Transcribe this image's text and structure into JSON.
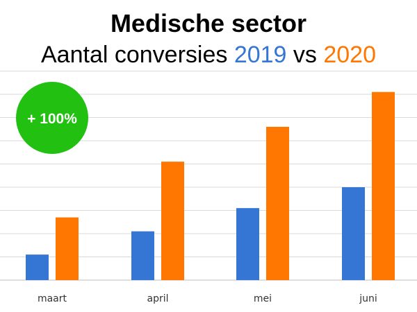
{
  "title": "Medische sector",
  "subtitle": {
    "prefix": "Aantal conversies ",
    "year_a": "2019",
    "separator": " vs ",
    "year_b": "2020"
  },
  "badge": {
    "text": "+ 100%",
    "color": "#22c111"
  },
  "chart_data": {
    "type": "bar",
    "title": "Medische sector",
    "subtitle": "Aantal conversies 2019 vs 2020",
    "categories": [
      "maart",
      "april",
      "mei",
      "juni"
    ],
    "series": [
      {
        "name": "2019",
        "color": "#3575d3",
        "values": [
          1.1,
          2.1,
          3.1,
          4.0
        ]
      },
      {
        "name": "2020",
        "color": "#ff7700",
        "values": [
          2.7,
          5.1,
          6.6,
          8.1
        ]
      }
    ],
    "ylim": [
      0,
      9
    ],
    "y_tick_labels_visible": false,
    "grid": true,
    "legend": "none"
  }
}
